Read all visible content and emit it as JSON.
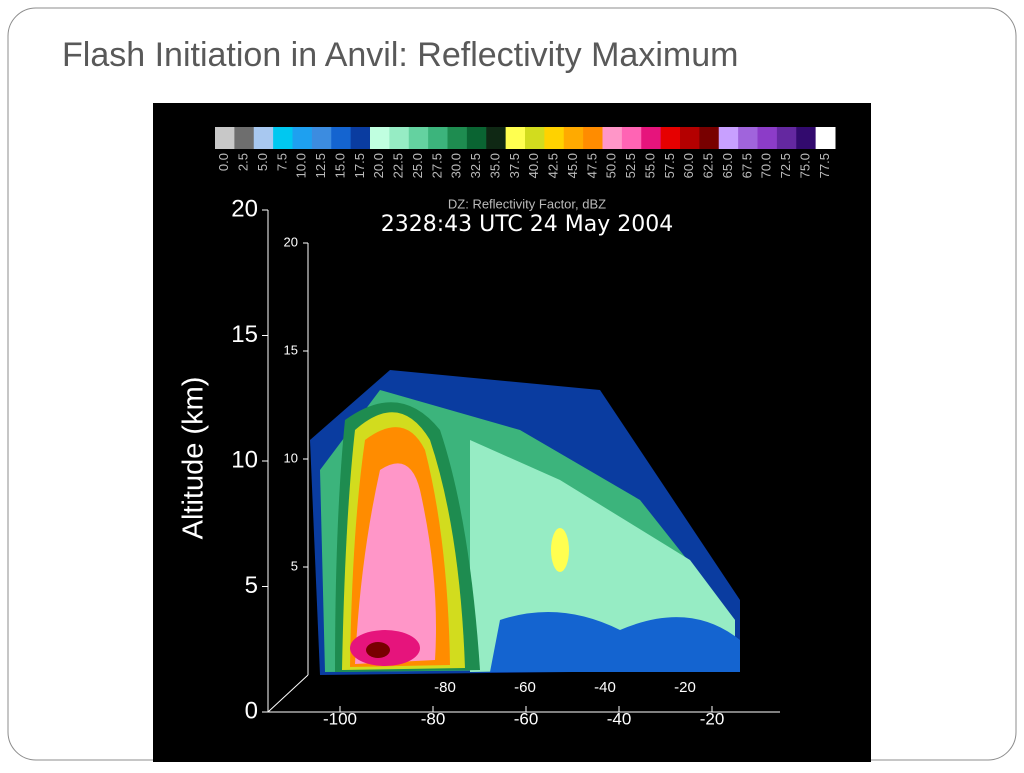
{
  "slide": {
    "title": "Flash Initiation in Anvil: Reflectivity Maximum"
  },
  "figure": {
    "colorbar": {
      "label": "DZ: Reflectivity Factor, dBZ",
      "labels": [
        "0.0",
        "2.5",
        "5.0",
        "7.5",
        "10.0",
        "12.5",
        "15.0",
        "17.5",
        "20.0",
        "22.5",
        "25.0",
        "27.5",
        "30.0",
        "32.5",
        "35.0",
        "37.5",
        "40.0",
        "42.5",
        "45.0",
        "47.5",
        "50.0",
        "52.5",
        "55.0",
        "57.5",
        "60.0",
        "62.5",
        "65.0",
        "67.5",
        "70.0",
        "72.5",
        "75.0",
        "77.5"
      ],
      "colors": [
        "#c8c8c8",
        "#6e6e6e",
        "#a8c8f0",
        "#00c8f0",
        "#1ea0f0",
        "#3c8ce0",
        "#1464d0",
        "#0a3ca0",
        "#c0ffe0",
        "#96ecc4",
        "#64d2a0",
        "#3cb47c",
        "#1e8c50",
        "#0a6432",
        "#0f2814",
        "#ffff50",
        "#d2dc1e",
        "#ffd200",
        "#ffaa00",
        "#ff8c00",
        "#ff96c8",
        "#ff64b4",
        "#e6147c",
        "#e60000",
        "#b40000",
        "#780000",
        "#c8a0ff",
        "#a064dc",
        "#8c3cc8",
        "#6428a0",
        "#320a6e",
        "#ffffff"
      ]
    },
    "timestamp": "2328:43 UTC 24 May 2004",
    "y_axis": {
      "label": "Altitude (km)",
      "ticks": [
        "20",
        "15",
        "10",
        "5",
        "0"
      ]
    },
    "inner_y_ticks": [
      "20",
      "15",
      "10",
      "5"
    ],
    "x_ticks": [
      "-100",
      "-80",
      "-60",
      "-40",
      "-20"
    ],
    "inner_x_ticks": [
      "-80",
      "-60",
      "-40",
      "-20"
    ]
  }
}
